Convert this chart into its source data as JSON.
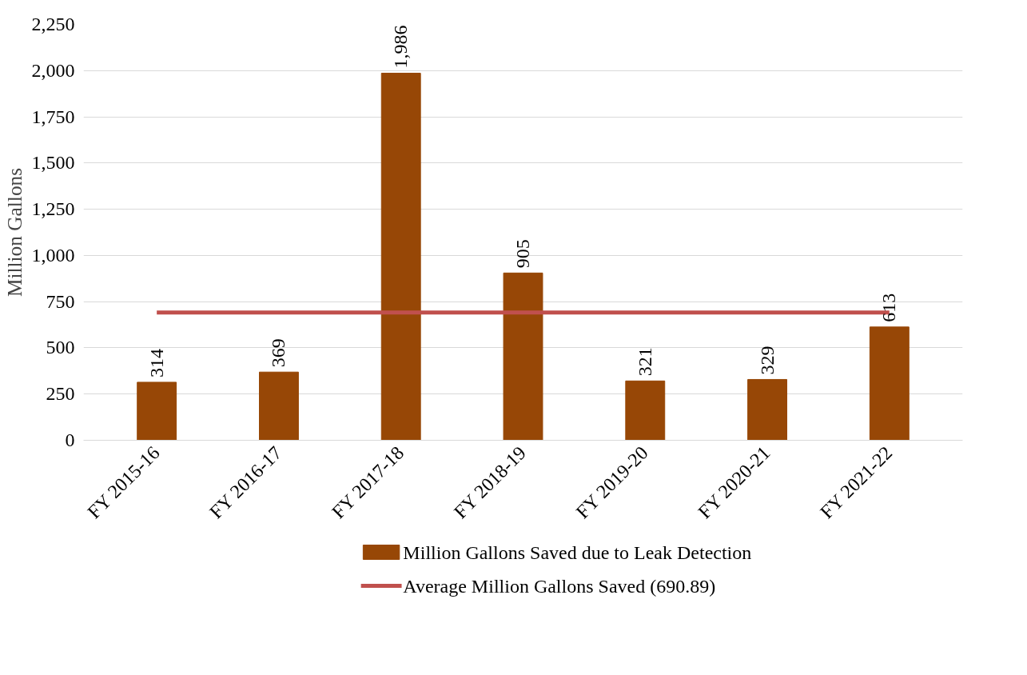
{
  "chart_data": {
    "type": "bar",
    "ylabel": "Million Gallons",
    "categories": [
      "FY 2015-16",
      "FY 2016-17",
      "FY 2017-18",
      "FY 2018-19",
      "FY 2019-20",
      "FY 2020-21",
      "FY 2021-22"
    ],
    "series": [
      {
        "name": "Million Gallons Saved due to Leak Detection",
        "color": "#974706",
        "values": [
          314,
          369,
          1986,
          905,
          321,
          329,
          613
        ],
        "value_labels": [
          "314",
          "369",
          "1,986",
          "905",
          "321",
          "329",
          "613"
        ],
        "data_labels": true
      },
      {
        "name": "Average Million Gallons Saved (690.89)",
        "type": "line",
        "color": "#c0504d",
        "values": [
          690.89,
          690.89,
          690.89,
          690.89,
          690.89,
          690.89,
          690.89
        ]
      }
    ],
    "ylim": [
      0,
      2250
    ],
    "yticks": [
      0,
      {
        "value": 250,
        "label": "250"
      },
      {
        "value": 500,
        "label": "500"
      },
      {
        "value": 750,
        "label": "750"
      },
      {
        "value": 1000,
        "label": "1,000"
      },
      {
        "value": 1250,
        "label": "1,250"
      },
      {
        "value": 1500,
        "label": "1,500"
      },
      {
        "value": 1750,
        "label": "1,750"
      },
      {
        "value": 2000,
        "label": "2,000"
      },
      {
        "value": 2250,
        "label": "2,250"
      }
    ],
    "grid": "y",
    "legend": "bottom"
  }
}
